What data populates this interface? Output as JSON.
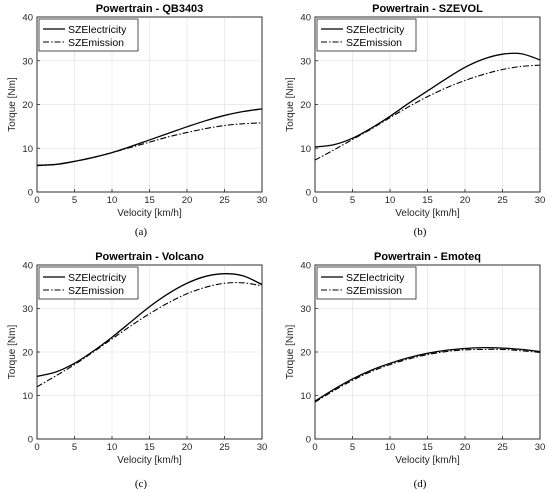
{
  "chart_data": [
    {
      "type": "line",
      "title": "Powertrain - QB3403",
      "caption": "(a)",
      "xlabel": "Velocity [km/h]",
      "ylabel": "Torque [Nm]",
      "xlim": [
        0,
        30
      ],
      "ylim": [
        0,
        40
      ],
      "xticks": [
        0,
        5,
        10,
        15,
        20,
        25,
        30
      ],
      "yticks": [
        0,
        10,
        20,
        30,
        40
      ],
      "grid": true,
      "legend_position": "top-left",
      "x": [
        0,
        2.5,
        5,
        7.5,
        10,
        12.5,
        15,
        17.5,
        20,
        22.5,
        25,
        27.5,
        30
      ],
      "series": [
        {
          "name": "SZElectricity",
          "style": "solid",
          "values": [
            6.1,
            6.3,
            7.0,
            7.9,
            9.0,
            10.4,
            11.9,
            13.4,
            14.9,
            16.3,
            17.5,
            18.4,
            19.0
          ]
        },
        {
          "name": "SZEmission",
          "style": "dashdot",
          "values": [
            6.0,
            6.3,
            7.0,
            7.9,
            9.0,
            10.2,
            11.4,
            12.6,
            13.6,
            14.5,
            15.2,
            15.6,
            15.8
          ]
        }
      ]
    },
    {
      "type": "line",
      "title": "Powertrain - SZEVOL",
      "caption": "(b)",
      "xlabel": "Velocity [km/h]",
      "ylabel": "Torque [Nm]",
      "xlim": [
        0,
        30
      ],
      "ylim": [
        0,
        40
      ],
      "xticks": [
        0,
        5,
        10,
        15,
        20,
        25,
        30
      ],
      "yticks": [
        0,
        10,
        20,
        30,
        40
      ],
      "grid": true,
      "legend_position": "top-left",
      "x": [
        0,
        2.5,
        5,
        7.5,
        10,
        12.5,
        15,
        17.5,
        20,
        22.5,
        25,
        27.5,
        30
      ],
      "series": [
        {
          "name": "SZElectricity",
          "style": "solid",
          "values": [
            10.3,
            10.8,
            12.3,
            14.6,
            17.3,
            20.3,
            23.1,
            25.9,
            28.5,
            30.4,
            31.5,
            31.6,
            30.2
          ]
        },
        {
          "name": "SZEmission",
          "style": "dashdot",
          "values": [
            7.3,
            9.6,
            12.0,
            14.4,
            17.0,
            19.5,
            21.8,
            23.8,
            25.5,
            26.9,
            28.0,
            28.7,
            29.0
          ]
        }
      ]
    },
    {
      "type": "line",
      "title": "Powertrain - Volcano",
      "caption": "(c)",
      "xlabel": "Velocity [km/h]",
      "ylabel": "Torque [Nm]",
      "xlim": [
        0,
        30
      ],
      "ylim": [
        0,
        40
      ],
      "xticks": [
        0,
        5,
        10,
        15,
        20,
        25,
        30
      ],
      "yticks": [
        0,
        10,
        20,
        30,
        40
      ],
      "grid": true,
      "legend_position": "top-left",
      "x": [
        0,
        2.5,
        5,
        7.5,
        10,
        12.5,
        15,
        17.5,
        20,
        22.5,
        25,
        27.5,
        30
      ],
      "series": [
        {
          "name": "SZElectricity",
          "style": "solid",
          "values": [
            14.4,
            15.4,
            17.4,
            20.2,
            23.4,
            26.9,
            30.4,
            33.4,
            35.8,
            37.4,
            38.0,
            37.5,
            35.5
          ]
        },
        {
          "name": "SZEmission",
          "style": "dashdot",
          "values": [
            12.0,
            14.5,
            17.1,
            20.0,
            23.0,
            26.0,
            28.8,
            31.3,
            33.4,
            34.9,
            35.8,
            35.9,
            35.2
          ]
        }
      ]
    },
    {
      "type": "line",
      "title": "Powertrain - Emoteq",
      "caption": "(d)",
      "xlabel": "Velocity [km/h]",
      "ylabel": "Torque [Nm]",
      "xlim": [
        0,
        30
      ],
      "ylim": [
        0,
        40
      ],
      "xticks": [
        0,
        5,
        10,
        15,
        20,
        25,
        30
      ],
      "yticks": [
        0,
        10,
        20,
        30,
        40
      ],
      "grid": true,
      "legend_position": "top-left",
      "x": [
        0,
        2.5,
        5,
        7.5,
        10,
        12.5,
        15,
        17.5,
        20,
        22.5,
        25,
        27.5,
        30
      ],
      "series": [
        {
          "name": "SZElectricity",
          "style": "solid",
          "values": [
            8.7,
            11.4,
            13.8,
            15.8,
            17.4,
            18.7,
            19.7,
            20.4,
            20.8,
            21.0,
            20.9,
            20.6,
            20.1
          ]
        },
        {
          "name": "SZEmission",
          "style": "dashdot",
          "values": [
            8.5,
            11.1,
            13.5,
            15.5,
            17.1,
            18.4,
            19.4,
            20.1,
            20.5,
            20.6,
            20.6,
            20.3,
            19.9
          ]
        }
      ]
    }
  ]
}
